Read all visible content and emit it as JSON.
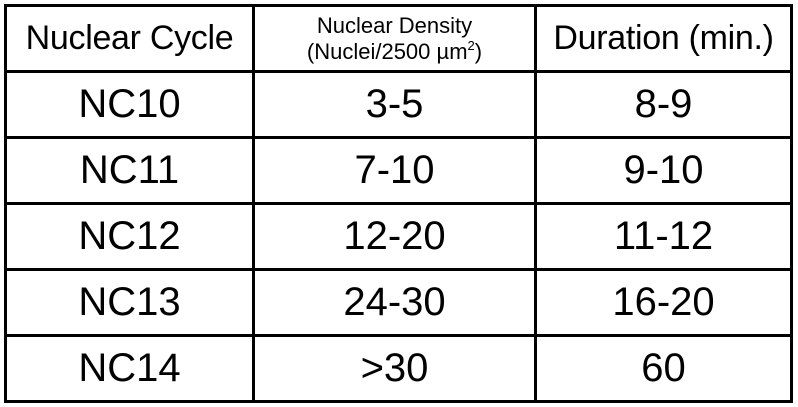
{
  "table": {
    "headers": {
      "cycle": "Nuclear Cycle",
      "density_line1": "Nuclear Density",
      "density_line2": "(Nuclei/2500 µm",
      "density_sup": "2",
      "density_close": ")",
      "duration": "Duration (min.)"
    },
    "rows": [
      {
        "cycle": "NC10",
        "density": "3-5",
        "duration": "8-9"
      },
      {
        "cycle": "NC11",
        "density": "7-10",
        "duration": "9-10"
      },
      {
        "cycle": "NC12",
        "density": "12-20",
        "duration": "11-12"
      },
      {
        "cycle": "NC13",
        "density": "24-30",
        "duration": "16-20"
      },
      {
        "cycle": "NC14",
        "density": ">30",
        "duration": "60"
      }
    ]
  }
}
